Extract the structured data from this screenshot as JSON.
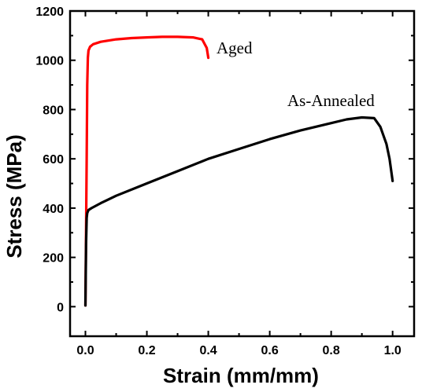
{
  "chart_data": {
    "type": "line",
    "xlabel": "Strain (mm/mm)",
    "ylabel": "Stress (MPa)",
    "xlim": [
      -0.05,
      1.07
    ],
    "ylim": [
      -120,
      1200
    ],
    "xticks": [
      0.0,
      0.2,
      0.4,
      0.6,
      0.8,
      1.0
    ],
    "xtick_labels": [
      "0.0",
      "0.2",
      "0.4",
      "0.6",
      "0.8",
      "1.0"
    ],
    "yticks": [
      0,
      200,
      400,
      600,
      800,
      1000,
      1200
    ],
    "ytick_labels": [
      "0",
      "200",
      "400",
      "600",
      "800",
      "1000",
      "1200"
    ],
    "grid": false,
    "legend": "none",
    "series": [
      {
        "name": "Aged",
        "color": "#ff0000",
        "x": [
          0.0,
          0.004,
          0.006,
          0.008,
          0.01,
          0.015,
          0.025,
          0.05,
          0.1,
          0.15,
          0.2,
          0.25,
          0.3,
          0.35,
          0.38,
          0.395,
          0.4
        ],
        "y": [
          5,
          600,
          900,
          1010,
          1040,
          1055,
          1065,
          1075,
          1085,
          1090,
          1093,
          1095,
          1095,
          1093,
          1085,
          1050,
          1010
        ]
      },
      {
        "name": "As-Annealed",
        "color": "#000000",
        "x": [
          0.0,
          0.002,
          0.004,
          0.006,
          0.01,
          0.02,
          0.05,
          0.1,
          0.2,
          0.3,
          0.4,
          0.5,
          0.6,
          0.7,
          0.8,
          0.85,
          0.9,
          0.94,
          0.96,
          0.98,
          0.99,
          1.0
        ],
        "y": [
          5,
          250,
          360,
          380,
          392,
          400,
          420,
          450,
          500,
          550,
          600,
          640,
          680,
          715,
          745,
          760,
          768,
          765,
          730,
          660,
          600,
          510
        ]
      }
    ]
  }
}
